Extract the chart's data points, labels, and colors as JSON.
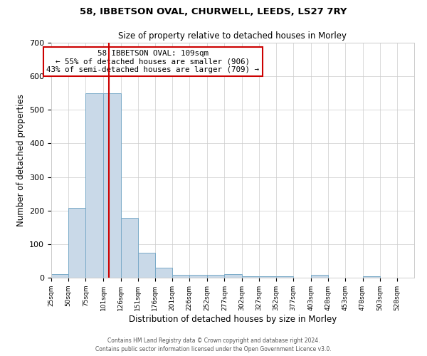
{
  "title1": "58, IBBETSON OVAL, CHURWELL, LEEDS, LS27 7RY",
  "title2": "Size of property relative to detached houses in Morley",
  "xlabel": "Distribution of detached houses by size in Morley",
  "ylabel": "Number of detached properties",
  "bar_color": "#c9d9e8",
  "bar_edge_color": "#7aaac8",
  "grid_color": "#cccccc",
  "background_color": "#ffffff",
  "bins": [
    25,
    50,
    75,
    101,
    126,
    151,
    176,
    201,
    226,
    252,
    277,
    302,
    327,
    352,
    377,
    403,
    428,
    453,
    478,
    503,
    528,
    553
  ],
  "bin_labels": [
    "25sqm",
    "50sqm",
    "75sqm",
    "101sqm",
    "126sqm",
    "151sqm",
    "176sqm",
    "201sqm",
    "226sqm",
    "252sqm",
    "277sqm",
    "302sqm",
    "327sqm",
    "352sqm",
    "377sqm",
    "403sqm",
    "428sqm",
    "453sqm",
    "478sqm",
    "503sqm",
    "528sqm"
  ],
  "values": [
    10,
    207,
    549,
    549,
    178,
    75,
    29,
    8,
    8,
    8,
    10,
    5,
    5,
    5,
    0,
    8,
    0,
    0,
    5,
    0,
    0
  ],
  "vline_x": 109,
  "vline_color": "#cc0000",
  "annotation_title": "58 IBBETSON OVAL: 109sqm",
  "annotation_line1": "← 55% of detached houses are smaller (906)",
  "annotation_line2": "43% of semi-detached houses are larger (709) →",
  "annotation_box_color": "#ffffff",
  "annotation_box_edge": "#cc0000",
  "footer1": "Contains HM Land Registry data © Crown copyright and database right 2024.",
  "footer2": "Contains public sector information licensed under the Open Government Licence v3.0.",
  "ylim": [
    0,
    700
  ]
}
